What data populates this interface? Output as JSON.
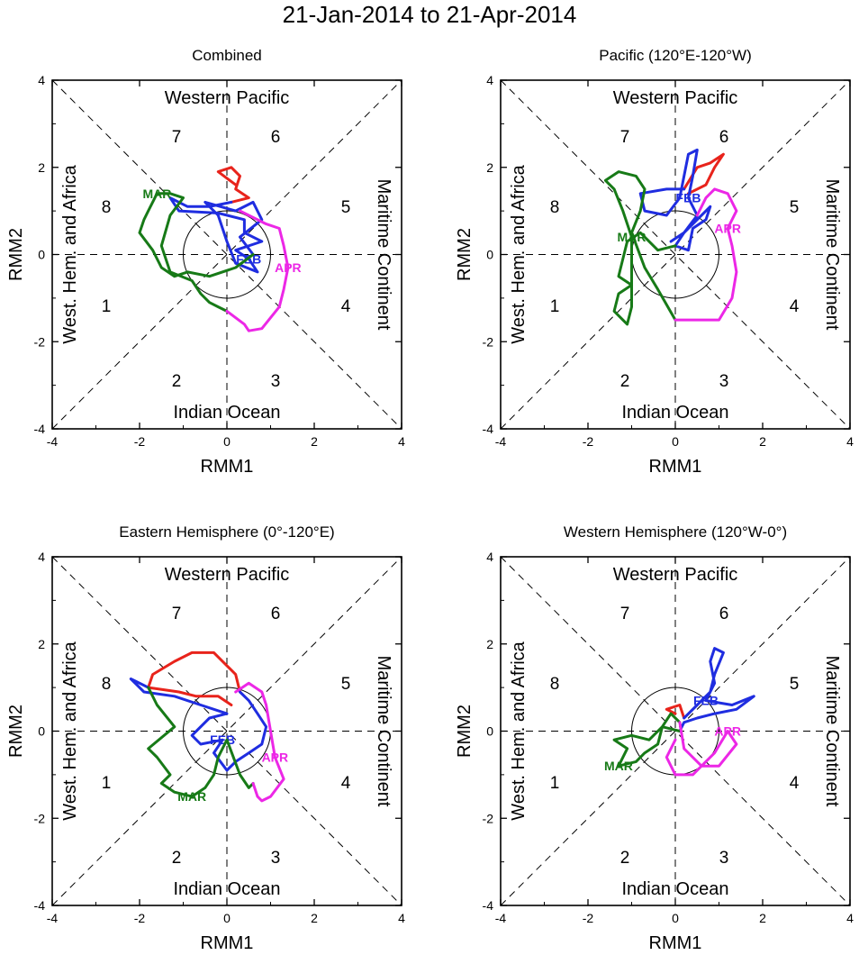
{
  "title": "21-Jan-2014 to 21-Apr-2014",
  "month_colors": {
    "JAN": "#e8231b",
    "FEB": "#1f2de0",
    "MAR": "#177a17",
    "APR": "#ec27e6"
  },
  "chart_data": [
    {
      "type": "line",
      "title": "Combined",
      "xlabel": "RMM1",
      "ylabel": "RMM2",
      "xlim": [
        -4,
        4
      ],
      "ylim": [
        -4,
        4
      ],
      "xticks": [
        "-4",
        "-2",
        "0",
        "2",
        "4"
      ],
      "yticks": [
        "-4",
        "-2",
        "0",
        "2",
        "4"
      ],
      "region_labels": {
        "top": "Western Pacific",
        "bottom": "Indian Ocean",
        "left": "West. Hem. and Africa",
        "right": "Maritime Continent"
      },
      "phases": [
        "1",
        "2",
        "3",
        "4",
        "5",
        "6",
        "7",
        "8"
      ],
      "series": [
        {
          "name": "JAN",
          "label": "",
          "points": [
            [
              0.2,
              1.6
            ],
            [
              -0.2,
              1.9
            ],
            [
              0.1,
              2.0
            ],
            [
              0.3,
              1.8
            ],
            [
              0.2,
              1.5
            ],
            [
              0.5,
              1.3
            ],
            [
              0.1,
              1.2
            ]
          ]
        },
        {
          "name": "FEB",
          "label": "FEB",
          "points": [
            [
              0.1,
              1.2
            ],
            [
              -0.4,
              1.1
            ],
            [
              -0.9,
              1.1
            ],
            [
              -1.3,
              1.3
            ],
            [
              -1.1,
              1.0
            ],
            [
              -0.2,
              0.95
            ],
            [
              0.4,
              0.8
            ],
            [
              0.4,
              0.5
            ],
            [
              0.8,
              0.3
            ],
            [
              0.2,
              0.1
            ],
            [
              0.5,
              -0.1
            ],
            [
              0.7,
              -0.4
            ],
            [
              0.2,
              -0.2
            ],
            [
              0,
              0.3
            ],
            [
              -0.2,
              0.9
            ],
            [
              -0.5,
              1.2
            ],
            [
              0.2,
              1.0
            ],
            [
              0.6,
              1.2
            ],
            [
              0.8,
              0.8
            ],
            [
              0.3,
              0.4
            ],
            [
              0.6,
              0
            ]
          ]
        },
        {
          "name": "MAR",
          "label": "MAR",
          "points": [
            [
              0.6,
              0
            ],
            [
              0.2,
              -0.3
            ],
            [
              -0.4,
              -0.5
            ],
            [
              -0.9,
              -0.4
            ],
            [
              -1.2,
              -0.5
            ],
            [
              -1.5,
              -0.3
            ],
            [
              -1.7,
              0.1
            ],
            [
              -2.0,
              0.5
            ],
            [
              -1.9,
              0.8
            ],
            [
              -1.8,
              1.0
            ],
            [
              -1.6,
              1.4
            ],
            [
              -1.3,
              1.4
            ],
            [
              -1.0,
              1.3
            ],
            [
              -1.3,
              0.9
            ],
            [
              -1.5,
              0.2
            ],
            [
              -1.3,
              -0.4
            ],
            [
              -0.8,
              -0.6
            ],
            [
              -0.6,
              -0.9
            ],
            [
              -0.4,
              -1.1
            ],
            [
              -0.2,
              -1.2
            ],
            [
              0,
              -1.3
            ]
          ]
        },
        {
          "name": "APR",
          "label": "APR",
          "points": [
            [
              0,
              -1.3
            ],
            [
              0.4,
              -1.6
            ],
            [
              0.5,
              -1.75
            ],
            [
              0.8,
              -1.7
            ],
            [
              1.2,
              -1.2
            ],
            [
              1.3,
              -0.8
            ],
            [
              1.4,
              -0.3
            ],
            [
              1.3,
              0.2
            ],
            [
              1.2,
              0.6
            ],
            [
              0.9,
              0.7
            ],
            [
              0.5,
              0.9
            ],
            [
              0.3,
              1.0
            ]
          ]
        }
      ]
    },
    {
      "type": "line",
      "title": "Pacific (120°E-120°W)",
      "xlabel": "RMM1",
      "ylabel": "RMM2",
      "xlim": [
        -4,
        4
      ],
      "ylim": [
        -4,
        4
      ],
      "xticks": [
        "-4",
        "-2",
        "0",
        "2",
        "4"
      ],
      "yticks": [
        "-4",
        "-2",
        "0",
        "2",
        "4"
      ],
      "region_labels": {
        "top": "Western Pacific",
        "bottom": "Indian Ocean",
        "left": "West. Hem. and Africa",
        "right": "Maritime Continent"
      },
      "phases": [
        "1",
        "2",
        "3",
        "4",
        "5",
        "6",
        "7",
        "8"
      ],
      "series": [
        {
          "name": "JAN",
          "label": "",
          "points": [
            [
              0.3,
              1.4
            ],
            [
              0.7,
              1.6
            ],
            [
              0.9,
              2.0
            ],
            [
              1.1,
              2.3
            ],
            [
              0.8,
              2.1
            ],
            [
              0.5,
              2.0
            ],
            [
              0.2,
              1.5
            ]
          ]
        },
        {
          "name": "FEB",
          "label": "FEB",
          "points": [
            [
              0.2,
              1.5
            ],
            [
              -0.2,
              1.5
            ],
            [
              -0.8,
              1.4
            ],
            [
              -0.7,
              1.0
            ],
            [
              -0.2,
              0.9
            ],
            [
              0.1,
              1.3
            ],
            [
              0.3,
              2.3
            ],
            [
              0.5,
              2.4
            ],
            [
              0.4,
              1.8
            ],
            [
              0.3,
              1.3
            ],
            [
              0.5,
              0.9
            ],
            [
              0.2,
              0.5
            ],
            [
              0.0,
              0.2
            ],
            [
              0.3,
              0.1
            ],
            [
              0.4,
              0.6
            ],
            [
              0.7,
              0.8
            ],
            [
              0.8,
              1.1
            ],
            [
              0.2,
              0.5
            ],
            [
              -0.1,
              0.3
            ]
          ]
        },
        {
          "name": "MAR",
          "label": "MAR",
          "points": [
            [
              0,
              0.2
            ],
            [
              -0.4,
              0.1
            ],
            [
              -0.8,
              0.5
            ],
            [
              -1.1,
              0.3
            ],
            [
              -1.2,
              -0.1
            ],
            [
              -1.3,
              -0.5
            ],
            [
              -1.0,
              -0.7
            ],
            [
              -1.3,
              -0.9
            ],
            [
              -1.4,
              -1.3
            ],
            [
              -1.1,
              -1.6
            ],
            [
              -1.0,
              -1.2
            ],
            [
              -1.0,
              0.4
            ],
            [
              -1.2,
              1.0
            ],
            [
              -1.4,
              1.5
            ],
            [
              -1.6,
              1.7
            ],
            [
              -1.3,
              1.9
            ],
            [
              -0.9,
              1.8
            ],
            [
              -0.7,
              1.5
            ],
            [
              -0.8,
              1.0
            ],
            [
              -1.0,
              0.5
            ],
            [
              -0.7,
              -0.3
            ],
            [
              -0.4,
              -0.8
            ],
            [
              0,
              -1.5
            ]
          ]
        },
        {
          "name": "APR",
          "label": "APR",
          "points": [
            [
              0,
              -1.5
            ],
            [
              0.5,
              -1.5
            ],
            [
              1.0,
              -1.5
            ],
            [
              1.3,
              -1.0
            ],
            [
              1.4,
              -0.4
            ],
            [
              1.3,
              0.2
            ],
            [
              1.2,
              0.6
            ],
            [
              1.4,
              1.0
            ],
            [
              1.2,
              1.4
            ],
            [
              0.9,
              1.5
            ],
            [
              0.7,
              1.3
            ],
            [
              0.5,
              0.9
            ]
          ]
        }
      ]
    },
    {
      "type": "line",
      "title": "Eastern Hemisphere (0°-120°E)",
      "xlabel": "RMM1",
      "ylabel": "RMM2",
      "xlim": [
        -4,
        4
      ],
      "ylim": [
        -4,
        4
      ],
      "xticks": [
        "-4",
        "-2",
        "0",
        "2",
        "4"
      ],
      "yticks": [
        "-4",
        "-2",
        "0",
        "2",
        "4"
      ],
      "region_labels": {
        "top": "Western Pacific",
        "bottom": "Indian Ocean",
        "left": "West. Hem. and Africa",
        "right": "Maritime Continent"
      },
      "phases": [
        "1",
        "2",
        "3",
        "4",
        "5",
        "6",
        "7",
        "8"
      ],
      "series": [
        {
          "name": "JAN",
          "label": "",
          "points": [
            [
              0.1,
              0.6
            ],
            [
              -0.2,
              0.8
            ],
            [
              -0.7,
              0.8
            ],
            [
              -1.1,
              0.9
            ],
            [
              -1.8,
              1.0
            ],
            [
              -1.7,
              1.3
            ],
            [
              -1.2,
              1.6
            ],
            [
              -0.8,
              1.8
            ],
            [
              -0.3,
              1.8
            ],
            [
              0,
              1.5
            ],
            [
              0.2,
              1.3
            ],
            [
              0.3,
              0.9
            ]
          ]
        },
        {
          "name": "FEB",
          "label": "FEB",
          "points": [
            [
              0.3,
              0.9
            ],
            [
              0.5,
              0.7
            ],
            [
              0.7,
              0.4
            ],
            [
              0.9,
              0.1
            ],
            [
              0.8,
              -0.3
            ],
            [
              0.5,
              -0.5
            ],
            [
              0.2,
              -0.7
            ],
            [
              0.0,
              -0.9
            ],
            [
              -0.3,
              -0.5
            ],
            [
              -0.1,
              -0.2
            ],
            [
              -0.6,
              -0.3
            ],
            [
              -0.8,
              -0.1
            ],
            [
              -0.4,
              0.3
            ],
            [
              0,
              0.4
            ],
            [
              -0.6,
              0.6
            ],
            [
              -1.2,
              0.8
            ],
            [
              -1.9,
              0.9
            ],
            [
              -2.2,
              1.2
            ],
            [
              -1.8,
              1.0
            ]
          ]
        },
        {
          "name": "MAR",
          "label": "MAR",
          "points": [
            [
              -1.8,
              1.0
            ],
            [
              -1.6,
              0.6
            ],
            [
              -1.2,
              0.1
            ],
            [
              -1.8,
              -0.4
            ],
            [
              -1.6,
              -0.6
            ],
            [
              -1.3,
              -1.0
            ],
            [
              -1.5,
              -1.2
            ],
            [
              -1.2,
              -1.4
            ],
            [
              -0.8,
              -1.5
            ],
            [
              -0.5,
              -1.3
            ],
            [
              -0.3,
              -1.0
            ],
            [
              -0.2,
              -0.6
            ],
            [
              0,
              -0.2
            ],
            [
              0.3,
              -1.0
            ],
            [
              0.5,
              -1.3
            ],
            [
              0.6,
              -1.2
            ]
          ]
        },
        {
          "name": "APR",
          "label": "APR",
          "points": [
            [
              0.6,
              -1.2
            ],
            [
              0.7,
              -1.5
            ],
            [
              0.8,
              -1.6
            ],
            [
              1.0,
              -1.5
            ],
            [
              1.3,
              -1.1
            ],
            [
              1.1,
              -0.6
            ],
            [
              1.0,
              0.0
            ],
            [
              0.9,
              0.6
            ],
            [
              0.8,
              0.9
            ],
            [
              0.5,
              1.1
            ],
            [
              0.2,
              0.9
            ]
          ]
        }
      ]
    },
    {
      "type": "line",
      "title": "Western Hemisphere (120°W-0°)",
      "xlabel": "RMM1",
      "ylabel": "RMM2",
      "xlim": [
        -4,
        4
      ],
      "ylim": [
        -4,
        4
      ],
      "xticks": [
        "-4",
        "-2",
        "0",
        "2",
        "4"
      ],
      "yticks": [
        "-4",
        "-2",
        "0",
        "2",
        "4"
      ],
      "region_labels": {
        "top": "Western Pacific",
        "bottom": "Indian Ocean",
        "left": "West. Hem. and Africa",
        "right": "Maritime Continent"
      },
      "phases": [
        "1",
        "2",
        "3",
        "4",
        "5",
        "6",
        "7",
        "8"
      ],
      "series": [
        {
          "name": "JAN",
          "label": "",
          "points": [
            [
              0.0,
              0.4
            ],
            [
              -0.2,
              0.5
            ],
            [
              0.1,
              0.6
            ],
            [
              0.2,
              0.3
            ]
          ]
        },
        {
          "name": "FEB",
          "label": "FEB",
          "points": [
            [
              0.2,
              0.3
            ],
            [
              0.5,
              0.6
            ],
            [
              0.8,
              0.9
            ],
            [
              0.9,
              1.3
            ],
            [
              1.1,
              1.8
            ],
            [
              0.9,
              1.9
            ],
            [
              0.8,
              1.6
            ],
            [
              0.9,
              1.1
            ],
            [
              0.7,
              0.7
            ],
            [
              1.3,
              0.6
            ],
            [
              1.8,
              0.8
            ],
            [
              1.4,
              0.5
            ],
            [
              0.9,
              0.4
            ],
            [
              0.5,
              0.3
            ],
            [
              0.2,
              0.2
            ],
            [
              0.1,
              0.0
            ]
          ]
        },
        {
          "name": "MAR",
          "label": "MAR",
          "points": [
            [
              0.1,
              0
            ],
            [
              -0.3,
              0.1
            ],
            [
              -0.6,
              -0.2
            ],
            [
              -1.0,
              -0.1
            ],
            [
              -1.4,
              -0.2
            ],
            [
              -1.1,
              -0.4
            ],
            [
              -1.3,
              -0.8
            ],
            [
              -0.9,
              -0.7
            ],
            [
              -0.7,
              -0.5
            ],
            [
              -0.4,
              -0.3
            ],
            [
              -0.3,
              0.1
            ],
            [
              -0.1,
              0.4
            ],
            [
              0.1,
              0.2
            ]
          ]
        },
        {
          "name": "APR",
          "label": "APR",
          "points": [
            [
              0.1,
              0.2
            ],
            [
              0.2,
              -0.4
            ],
            [
              0.6,
              -0.8
            ],
            [
              1.0,
              -0.8
            ],
            [
              1.4,
              -0.3
            ],
            [
              1.2,
              0.0
            ],
            [
              0.9,
              -0.5
            ],
            [
              0.4,
              -1.0
            ],
            [
              0.0,
              -1.0
            ],
            [
              -0.2,
              -0.6
            ],
            [
              0.0,
              -0.2
            ]
          ]
        }
      ]
    }
  ]
}
